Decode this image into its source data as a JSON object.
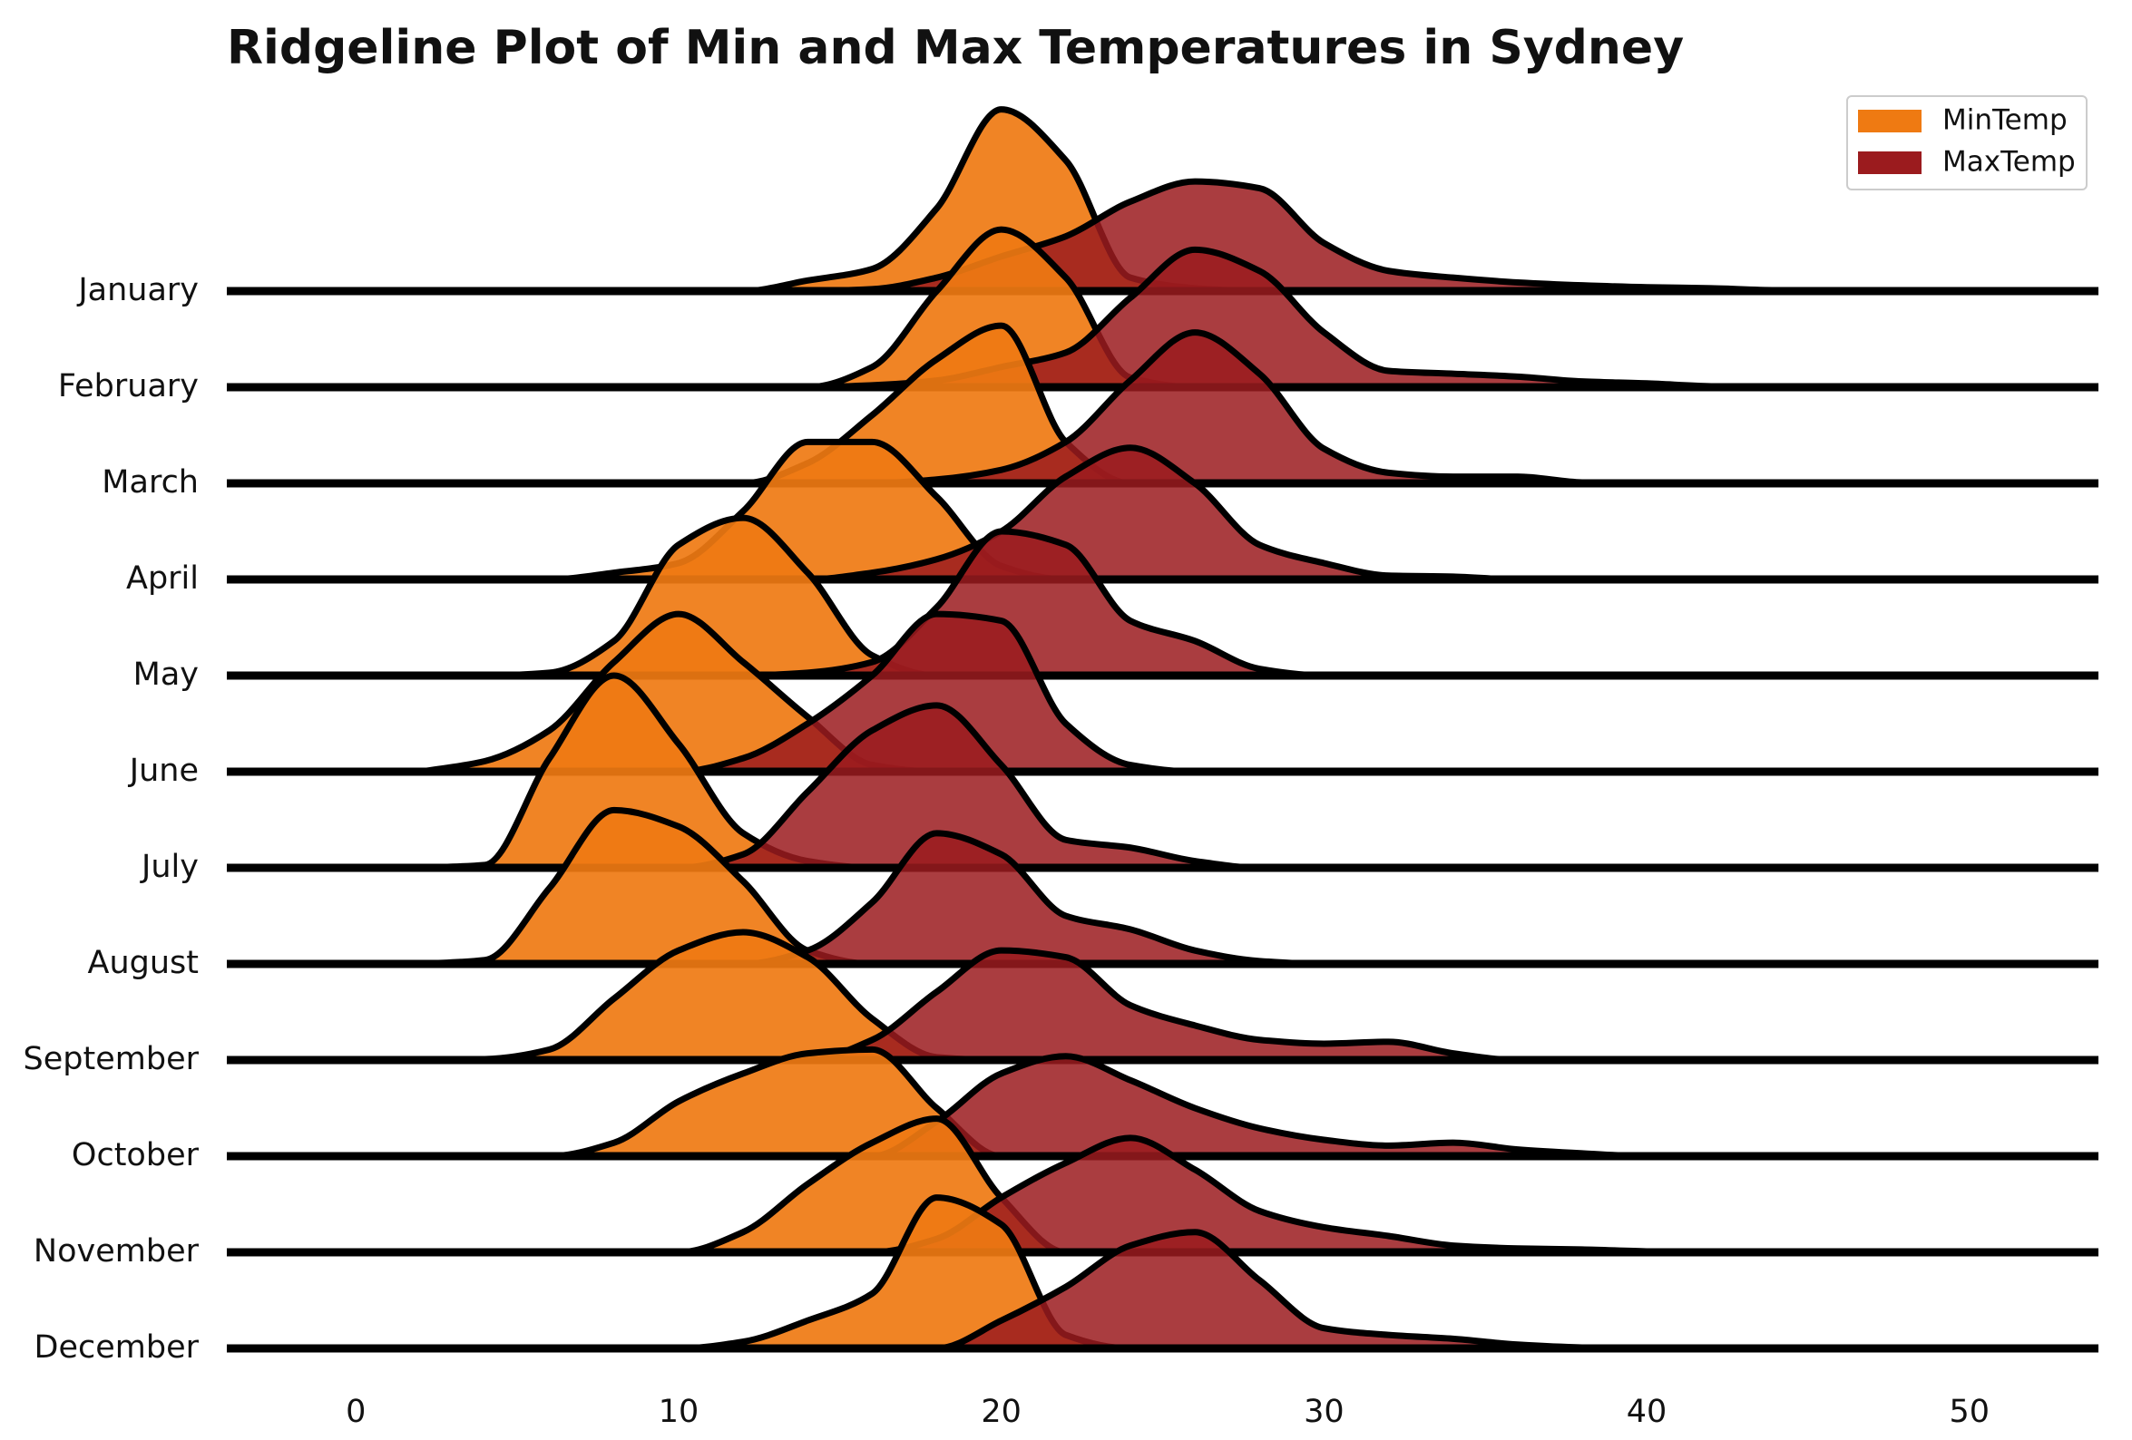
{
  "chart_data": {
    "type": "ridgeline",
    "title": "Ridgeline Plot of Min and Max Temperatures in Sydney",
    "categories": [
      "January",
      "February",
      "March",
      "April",
      "May",
      "June",
      "July",
      "August",
      "September",
      "October",
      "November",
      "December"
    ],
    "x": [
      2,
      4,
      6,
      8,
      10,
      12,
      14,
      16,
      18,
      20,
      22,
      24,
      26,
      28,
      30,
      32,
      34,
      36,
      38,
      40,
      42,
      44,
      46,
      48
    ],
    "xlim": [
      -4,
      54
    ],
    "xticks": [
      0,
      10,
      20,
      30,
      40,
      50
    ],
    "legend": "upper right",
    "series": [
      {
        "name": "MinTemp",
        "color": "#ef7a12",
        "values": [
          [
            0,
            0,
            0,
            0,
            0,
            0,
            0.11,
            0.23,
            0.86,
            1.89,
            1.36,
            0.14,
            0.03,
            0,
            0,
            0,
            0,
            0,
            0,
            0,
            0,
            0,
            0,
            0
          ],
          [
            0,
            0,
            0,
            0,
            0,
            0,
            0,
            0.21,
            1.0,
            1.64,
            1.14,
            0.1,
            0,
            0,
            0,
            0,
            0,
            0,
            0,
            0,
            0,
            0,
            0,
            0
          ],
          [
            0,
            0,
            0,
            0,
            0,
            0,
            0.21,
            0.71,
            1.29,
            1.64,
            0.43,
            0,
            0,
            0,
            0,
            0,
            0,
            0,
            0,
            0,
            0,
            0,
            0,
            0
          ],
          [
            0,
            0,
            0,
            0.07,
            0.17,
            0.71,
            1.43,
            1.43,
            0.86,
            0.14,
            0,
            0,
            0,
            0,
            0,
            0,
            0,
            0,
            0,
            0,
            0,
            0,
            0,
            0
          ],
          [
            0,
            0,
            0.03,
            0.36,
            1.36,
            1.64,
            1.07,
            0.21,
            0,
            0,
            0,
            0,
            0,
            0,
            0,
            0,
            0,
            0,
            0,
            0,
            0,
            0,
            0,
            0
          ],
          [
            0,
            0.11,
            0.43,
            1.14,
            1.64,
            1.14,
            0.57,
            0.07,
            0,
            0,
            0,
            0,
            0,
            0,
            0,
            0,
            0,
            0,
            0,
            0,
            0,
            0,
            0,
            0
          ],
          [
            0,
            0.03,
            1.14,
            2.0,
            1.29,
            0.36,
            0.07,
            0,
            0,
            0,
            0,
            0,
            0,
            0,
            0,
            0,
            0,
            0,
            0,
            0,
            0,
            0,
            0,
            0
          ],
          [
            0,
            0.04,
            0.79,
            1.6,
            1.43,
            0.86,
            0.14,
            0,
            0,
            0,
            0,
            0,
            0,
            0,
            0,
            0,
            0,
            0,
            0,
            0,
            0,
            0,
            0,
            0
          ],
          [
            0,
            0.01,
            0.11,
            0.64,
            1.14,
            1.33,
            1.07,
            0.43,
            0.03,
            0,
            0,
            0,
            0,
            0,
            0,
            0,
            0,
            0,
            0,
            0,
            0,
            0,
            0,
            0
          ],
          [
            0,
            0,
            0,
            0.14,
            0.57,
            0.86,
            1.07,
            1.11,
            0.5,
            0,
            0,
            0,
            0,
            0,
            0,
            0,
            0,
            0,
            0,
            0,
            0,
            0,
            0,
            0
          ],
          [
            0,
            0,
            0,
            0,
            0,
            0.21,
            0.71,
            1.14,
            1.39,
            0.57,
            0,
            0,
            0,
            0,
            0,
            0,
            0,
            0,
            0,
            0,
            0,
            0,
            0,
            0
          ],
          [
            0,
            0,
            0,
            0,
            0,
            0.07,
            0.29,
            0.57,
            1.57,
            1.29,
            0.14,
            0,
            0,
            0,
            0,
            0,
            0,
            0,
            0,
            0,
            0,
            0,
            0,
            0
          ]
        ]
      },
      {
        "name": "MaxTemp",
        "color": "#9b1b1e",
        "values": [
          [
            0,
            0,
            0,
            0,
            0,
            0,
            0,
            0.02,
            0.14,
            0.36,
            0.57,
            0.93,
            1.14,
            1.07,
            0.5,
            0.21,
            0.14,
            0.09,
            0.06,
            0.04,
            0.03,
            0.01,
            0.01,
            0
          ],
          [
            0,
            0,
            0,
            0,
            0,
            0,
            0,
            0.02,
            0.07,
            0.21,
            0.36,
            0.93,
            1.43,
            1.21,
            0.57,
            0.17,
            0.14,
            0.11,
            0.06,
            0.04,
            0.01,
            0,
            0,
            0
          ],
          [
            0,
            0,
            0,
            0,
            0,
            0,
            0,
            0,
            0.04,
            0.14,
            0.43,
            1.07,
            1.57,
            1.14,
            0.36,
            0.11,
            0.07,
            0.07,
            0.01,
            0,
            0,
            0,
            0,
            0
          ],
          [
            0,
            0,
            0,
            0,
            0,
            0,
            0,
            0.07,
            0.21,
            0.5,
            1.07,
            1.37,
            1.0,
            0.36,
            0.17,
            0.04,
            0.03,
            0,
            0,
            0,
            0,
            0,
            0,
            0
          ],
          [
            0,
            0,
            0,
            0,
            0,
            0,
            0.03,
            0.14,
            0.71,
            1.5,
            1.36,
            0.57,
            0.36,
            0.07,
            0,
            0,
            0,
            0,
            0,
            0,
            0,
            0,
            0,
            0
          ],
          [
            0,
            0,
            0,
            0,
            0,
            0.14,
            0.5,
            1.0,
            1.64,
            1.57,
            0.5,
            0.07,
            0,
            0,
            0,
            0,
            0,
            0,
            0,
            0,
            0,
            0,
            0,
            0
          ],
          [
            0,
            0,
            0,
            0,
            0,
            0.14,
            0.79,
            1.43,
            1.69,
            1.07,
            0.29,
            0.21,
            0.07,
            0,
            0,
            0,
            0,
            0,
            0,
            0,
            0,
            0,
            0,
            0
          ],
          [
            0,
            0,
            0,
            0,
            0,
            0,
            0.14,
            0.64,
            1.36,
            1.14,
            0.5,
            0.36,
            0.14,
            0.03,
            0,
            0,
            0,
            0,
            0,
            0,
            0,
            0,
            0,
            0
          ],
          [
            0,
            0,
            0,
            0,
            0,
            0,
            0,
            0.21,
            0.71,
            1.14,
            1.07,
            0.57,
            0.36,
            0.21,
            0.17,
            0.19,
            0.07,
            0,
            0,
            0,
            0,
            0,
            0,
            0
          ],
          [
            0,
            0,
            0,
            0,
            0,
            0,
            0,
            0,
            0.36,
            0.86,
            1.04,
            0.79,
            0.5,
            0.29,
            0.17,
            0.11,
            0.14,
            0.07,
            0.03,
            0,
            0,
            0,
            0,
            0
          ],
          [
            0,
            0,
            0,
            0,
            0,
            0,
            0,
            0,
            0.14,
            0.57,
            0.93,
            1.19,
            0.86,
            0.43,
            0.26,
            0.17,
            0.07,
            0.04,
            0.03,
            0.01,
            0,
            0,
            0,
            0
          ],
          [
            0,
            0,
            0,
            0,
            0,
            0,
            0,
            0,
            0,
            0.29,
            0.64,
            1.07,
            1.21,
            0.71,
            0.21,
            0.14,
            0.1,
            0.04,
            0.01,
            0,
            0,
            0,
            0,
            0
          ]
        ]
      }
    ]
  }
}
